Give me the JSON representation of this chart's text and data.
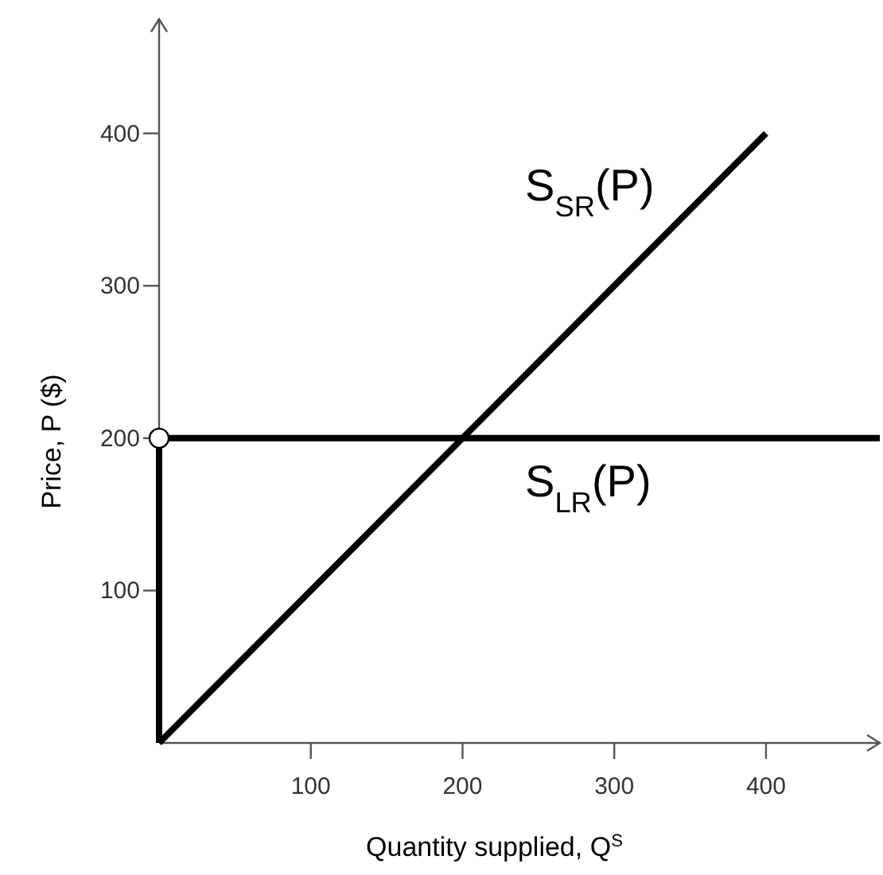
{
  "chart_data": {
    "type": "line",
    "xlabel": "Quantity supplied, Q$^{S}$",
    "ylabel": "Price, P ($)",
    "xlim": [
      0,
      475
    ],
    "ylim": [
      0,
      475
    ],
    "xticks": [
      100,
      200,
      300,
      400
    ],
    "yticks": [
      100,
      200,
      300,
      400
    ],
    "grid": false,
    "line_style": "solid",
    "series": [
      {
        "name": "S$_{SR}$(P)",
        "color": "#000000",
        "x": [
          0,
          400
        ],
        "values": [
          0,
          400
        ]
      },
      {
        "name": "S$_{LR}$(P)",
        "color": "#000000",
        "x": [
          0,
          0,
          475
        ],
        "values": [
          0,
          200,
          200
        ]
      },
      {
        "type": "scatter",
        "marker": "circle",
        "color": "#ffffff",
        "x": [
          0
        ],
        "values": [
          200
        ]
      }
    ]
  }
}
